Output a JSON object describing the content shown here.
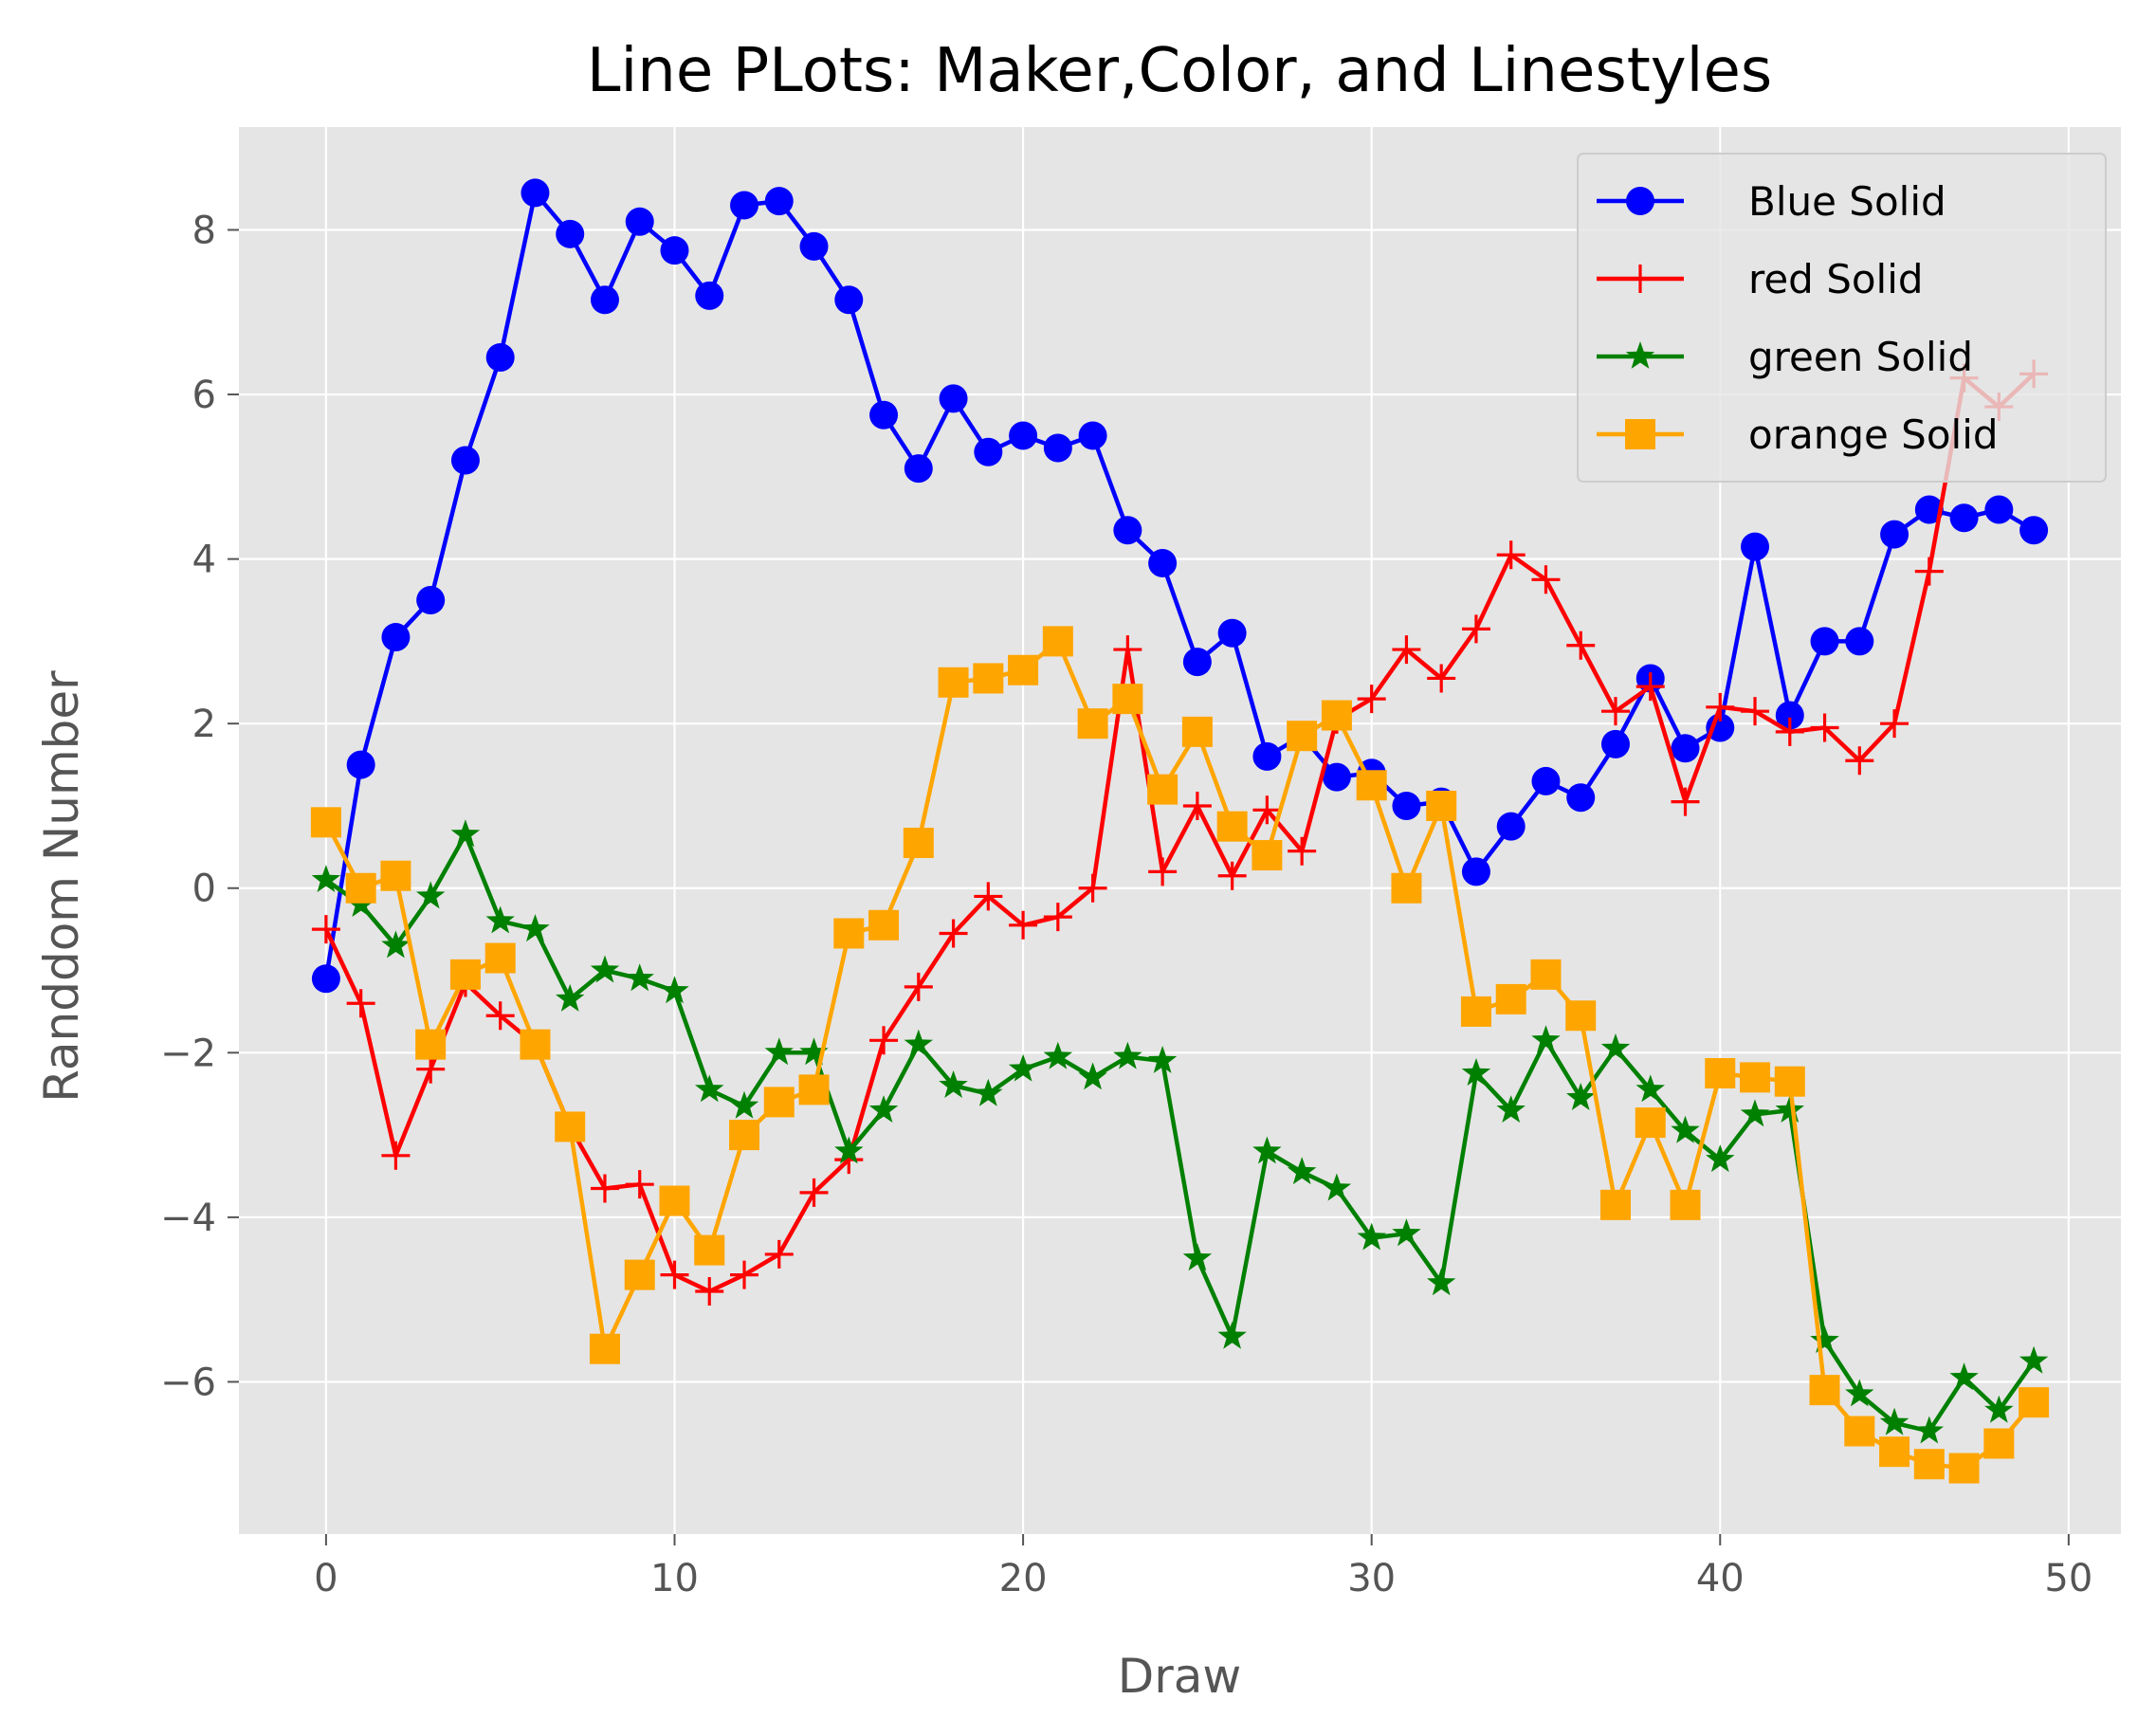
{
  "chart_data": {
    "type": "line",
    "title": "Line PLots: Maker,Color, and Linestyles",
    "xlabel": "Draw",
    "ylabel": "Randdom Number",
    "xlim": [
      -2.5,
      51.5
    ],
    "ylim": [
      -7.85,
      9.25
    ],
    "xticks": [
      0,
      10,
      20,
      30,
      40,
      50
    ],
    "yticks": [
      -6,
      -4,
      -2,
      0,
      2,
      4,
      6,
      8
    ],
    "grid": true,
    "legend_position": "top-right",
    "x": [
      0,
      1,
      2,
      3,
      4,
      5,
      6,
      7,
      8,
      9,
      10,
      11,
      12,
      13,
      14,
      15,
      16,
      17,
      18,
      19,
      20,
      21,
      22,
      23,
      24,
      25,
      26,
      27,
      28,
      29,
      30,
      31,
      32,
      33,
      34,
      35,
      36,
      37,
      38,
      39,
      40,
      41,
      42,
      43,
      44,
      45,
      46,
      47,
      48,
      49
    ],
    "series": [
      {
        "name": "Blue Solid",
        "color": "#0000ff",
        "marker": "circle",
        "values": [
          -1.1,
          1.5,
          3.05,
          3.5,
          5.2,
          6.45,
          8.45,
          7.95,
          7.15,
          8.1,
          7.75,
          7.2,
          8.3,
          8.35,
          7.8,
          7.15,
          5.75,
          5.1,
          5.95,
          5.3,
          5.5,
          5.35,
          5.5,
          4.35,
          3.95,
          2.75,
          3.1,
          1.6,
          1.85,
          1.35,
          1.4,
          1.0,
          1.05,
          0.2,
          0.75,
          1.3,
          1.1,
          1.75,
          2.55,
          1.7,
          1.95,
          4.15,
          2.1,
          3.0,
          3.0,
          4.3,
          4.6,
          4.5,
          4.6,
          4.35
        ]
      },
      {
        "name": "red Solid",
        "color": "#ff0000",
        "marker": "plus",
        "values": [
          -0.5,
          -1.4,
          -3.25,
          -2.2,
          -1.15,
          -1.55,
          -1.9,
          -2.9,
          -3.65,
          -3.6,
          -4.7,
          -4.9,
          -4.7,
          -4.45,
          -3.7,
          -3.3,
          -1.85,
          -1.2,
          -0.55,
          -0.1,
          -0.45,
          -0.35,
          0.0,
          2.9,
          0.2,
          1.0,
          0.15,
          0.95,
          0.45,
          2.05,
          2.3,
          2.9,
          2.55,
          3.15,
          4.05,
          3.75,
          2.95,
          2.15,
          2.45,
          1.05,
          2.2,
          2.15,
          1.9,
          1.95,
          1.55,
          2.0,
          3.85,
          6.2,
          5.85,
          6.25
        ]
      },
      {
        "name": "green Solid",
        "color": "#008000",
        "marker": "star",
        "values": [
          0.1,
          -0.2,
          -0.7,
          -0.1,
          0.65,
          -0.4,
          -0.5,
          -1.35,
          -1.0,
          -1.1,
          -1.25,
          -2.45,
          -2.65,
          -2.0,
          -2.0,
          -3.2,
          -2.7,
          -1.9,
          -2.4,
          -2.5,
          -2.2,
          -2.05,
          -2.3,
          -2.05,
          -2.1,
          -4.5,
          -5.45,
          -3.2,
          -3.45,
          -3.65,
          -4.25,
          -4.2,
          -4.8,
          -2.25,
          -2.7,
          -1.85,
          -2.55,
          -1.95,
          -2.45,
          -2.95,
          -3.3,
          -2.75,
          -2.7,
          -5.5,
          -6.15,
          -6.5,
          -6.6,
          -5.95,
          -6.35,
          -5.75
        ]
      },
      {
        "name": "orange Solid",
        "color": "#ffa500",
        "marker": "square",
        "values": [
          0.8,
          0.0,
          0.15,
          -1.9,
          -1.05,
          -0.85,
          -1.9,
          -2.9,
          -5.6,
          -4.7,
          -3.8,
          -4.4,
          -3.0,
          -2.6,
          -2.45,
          -0.55,
          -0.45,
          0.55,
          2.5,
          2.55,
          2.65,
          3.0,
          2.0,
          2.3,
          1.2,
          1.9,
          0.75,
          0.4,
          1.85,
          2.1,
          1.25,
          0.0,
          1.0,
          -1.5,
          -1.35,
          -1.05,
          -1.55,
          -3.85,
          -2.85,
          -3.85,
          -2.25,
          -2.3,
          -2.35,
          -6.1,
          -6.6,
          -6.85,
          -7.0,
          -7.05,
          -6.75,
          -6.25
        ]
      }
    ]
  }
}
